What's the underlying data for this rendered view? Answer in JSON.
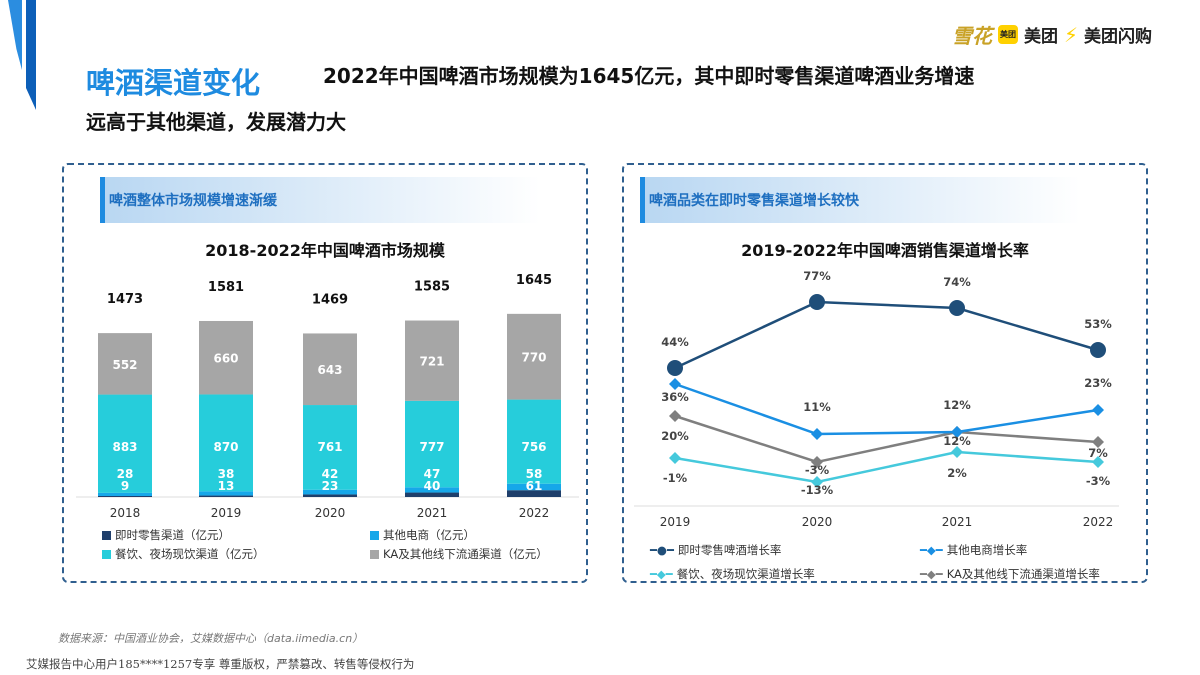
{
  "header": {
    "title": "啤酒渠道变化",
    "subtitle_line1": "2022年中国啤酒市场规模为1645亿元，其中即时零售渠道啤酒业务增速",
    "subtitle_line2": "远高于其他渠道，发展潜力大",
    "logos": [
      "雪花",
      "美团",
      "美团",
      "美团闪购"
    ]
  },
  "left_panel": {
    "heading": "啤酒整体市场规模增速渐缓"
  },
  "right_panel": {
    "heading": "啤酒品类在即时零售渠道增长较快"
  },
  "footer": {
    "source": "数据来源：中国酒业协会，艾媒数据中心（data.iimedia.cn）",
    "copyright": "艾媒报告中心用户185****1257专享 尊重版权，严禁篡改、转售等侵权行为"
  },
  "chart_data": [
    {
      "type": "bar",
      "stacked": true,
      "title": "2018-2022年中国啤酒市场规模",
      "categories": [
        "2018",
        "2019",
        "2020",
        "2021",
        "2022"
      ],
      "totals": [
        1473,
        1581,
        1469,
        1585,
        1645
      ],
      "series": [
        {
          "name": "即时零售渠道（亿元）",
          "color": "#1f3f6b",
          "values": [
            9,
            13,
            23,
            40,
            61
          ]
        },
        {
          "name": "其他电商（亿元）",
          "color": "#16a7e9",
          "values": [
            28,
            38,
            42,
            47,
            58
          ]
        },
        {
          "name": "餐饮、夜场现饮渠道（亿元）",
          "color": "#26cddb",
          "values": [
            883,
            870,
            761,
            777,
            756
          ]
        },
        {
          "name": "KA及其他线下流通渠道（亿元）",
          "color": "#a6a6a6",
          "values": [
            552,
            660,
            643,
            721,
            770
          ]
        }
      ],
      "legend": "bottom"
    },
    {
      "type": "line",
      "title": "2019-2022年中国啤酒销售渠道增长率",
      "categories": [
        "2019",
        "2020",
        "2021",
        "2022"
      ],
      "series": [
        {
          "name": "即时零售啤酒增长率",
          "color": "#1f4e79",
          "marker": "circle",
          "values": [
            44,
            77,
            74,
            53
          ],
          "labels": [
            "44%",
            "77%",
            "74%",
            "53%"
          ]
        },
        {
          "name": "其他电商增长率",
          "color": "#1a8fe3",
          "marker": "diamond",
          "values": [
            36,
            11,
            12,
            23
          ],
          "labels": [
            "36%",
            "11%",
            "12%",
            "23%"
          ]
        },
        {
          "name": "餐饮、夜场现饮渠道增长率",
          "color": "#45c9dc",
          "marker": "diamond",
          "values": [
            -1,
            -13,
            2,
            -3
          ],
          "labels": [
            "-1%",
            "-13%",
            "2%",
            "-3%"
          ]
        },
        {
          "name": "KA及其他线下流通渠道增长率",
          "color": "#7f7f7f",
          "marker": "diamond",
          "values": [
            20,
            -3,
            12,
            7
          ],
          "labels": [
            "20%",
            "-3%",
            "12%",
            "7%"
          ]
        }
      ],
      "legend": "bottom"
    }
  ]
}
